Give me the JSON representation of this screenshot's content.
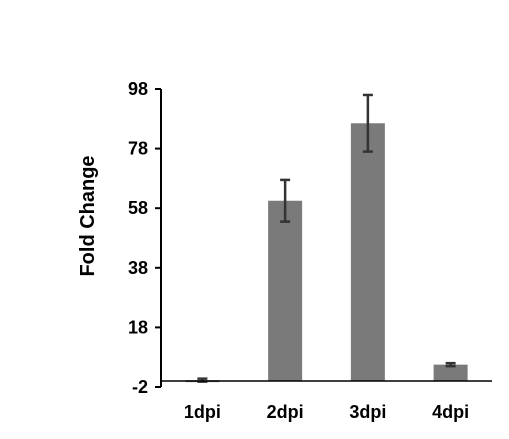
{
  "chart_data": {
    "type": "bar",
    "title": "",
    "xlabel": "",
    "ylabel": "Fold Change",
    "categories": [
      "1dpi",
      "2dpi",
      "3dpi",
      "4dpi"
    ],
    "values": [
      0.3,
      60.5,
      86.5,
      5.5
    ],
    "error": [
      0.5,
      7.0,
      9.5,
      0.5
    ],
    "ylim": [
      -2,
      98
    ],
    "yticks": [
      98,
      78,
      58,
      38,
      18,
      -2
    ],
    "ytick_labels": [
      "98",
      "78",
      "58",
      "38",
      "18",
      "-2"
    ],
    "grid": false,
    "legend": "none",
    "colors": {
      "bar": "#7a7a7a",
      "error": "#333333",
      "axis": "#000000"
    }
  }
}
